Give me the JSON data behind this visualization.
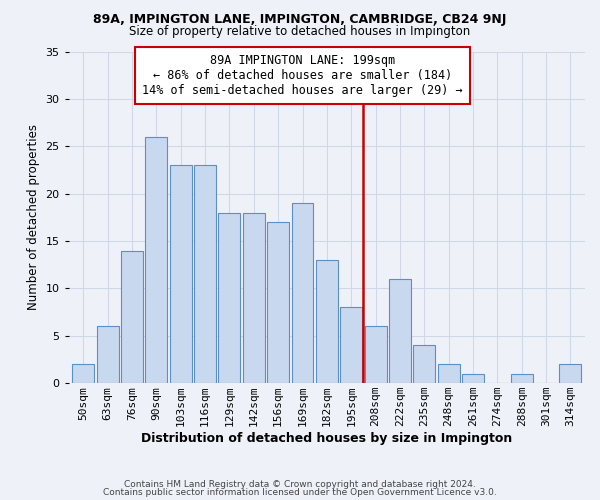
{
  "title": "89A, IMPINGTON LANE, IMPINGTON, CAMBRIDGE, CB24 9NJ",
  "subtitle": "Size of property relative to detached houses in Impington",
  "xlabel": "Distribution of detached houses by size in Impington",
  "ylabel": "Number of detached properties",
  "bar_labels": [
    "50sqm",
    "63sqm",
    "76sqm",
    "90sqm",
    "103sqm",
    "116sqm",
    "129sqm",
    "142sqm",
    "156sqm",
    "169sqm",
    "182sqm",
    "195sqm",
    "208sqm",
    "222sqm",
    "235sqm",
    "248sqm",
    "261sqm",
    "274sqm",
    "288sqm",
    "301sqm",
    "314sqm"
  ],
  "bar_values": [
    2,
    6,
    14,
    26,
    23,
    23,
    18,
    18,
    17,
    19,
    13,
    8,
    6,
    11,
    4,
    2,
    1,
    0,
    1,
    0,
    2
  ],
  "bar_color": "#c8d8ee",
  "bar_edge_color": "#5b8fc9",
  "vline_x_index": 11.5,
  "vline_color": "#cc0000",
  "annotation_title": "89A IMPINGTON LANE: 199sqm",
  "annotation_line1": "← 86% of detached houses are smaller (184)",
  "annotation_line2": "14% of semi-detached houses are larger (29) →",
  "annotation_box_facecolor": "#ffffff",
  "annotation_box_edgecolor": "#cc0000",
  "ylim": [
    0,
    35
  ],
  "yticks": [
    0,
    5,
    10,
    15,
    20,
    25,
    30,
    35
  ],
  "grid_color": "#d0d8e8",
  "footer1": "Contains HM Land Registry data © Crown copyright and database right 2024.",
  "footer2": "Contains public sector information licensed under the Open Government Licence v3.0.",
  "bg_color": "#eef2f8",
  "title_fontsize": 9.0,
  "subtitle_fontsize": 8.5,
  "xlabel_fontsize": 9.0,
  "ylabel_fontsize": 8.5,
  "tick_fontsize": 8.0,
  "ann_fontsize": 8.5,
  "footer_fontsize": 6.5
}
